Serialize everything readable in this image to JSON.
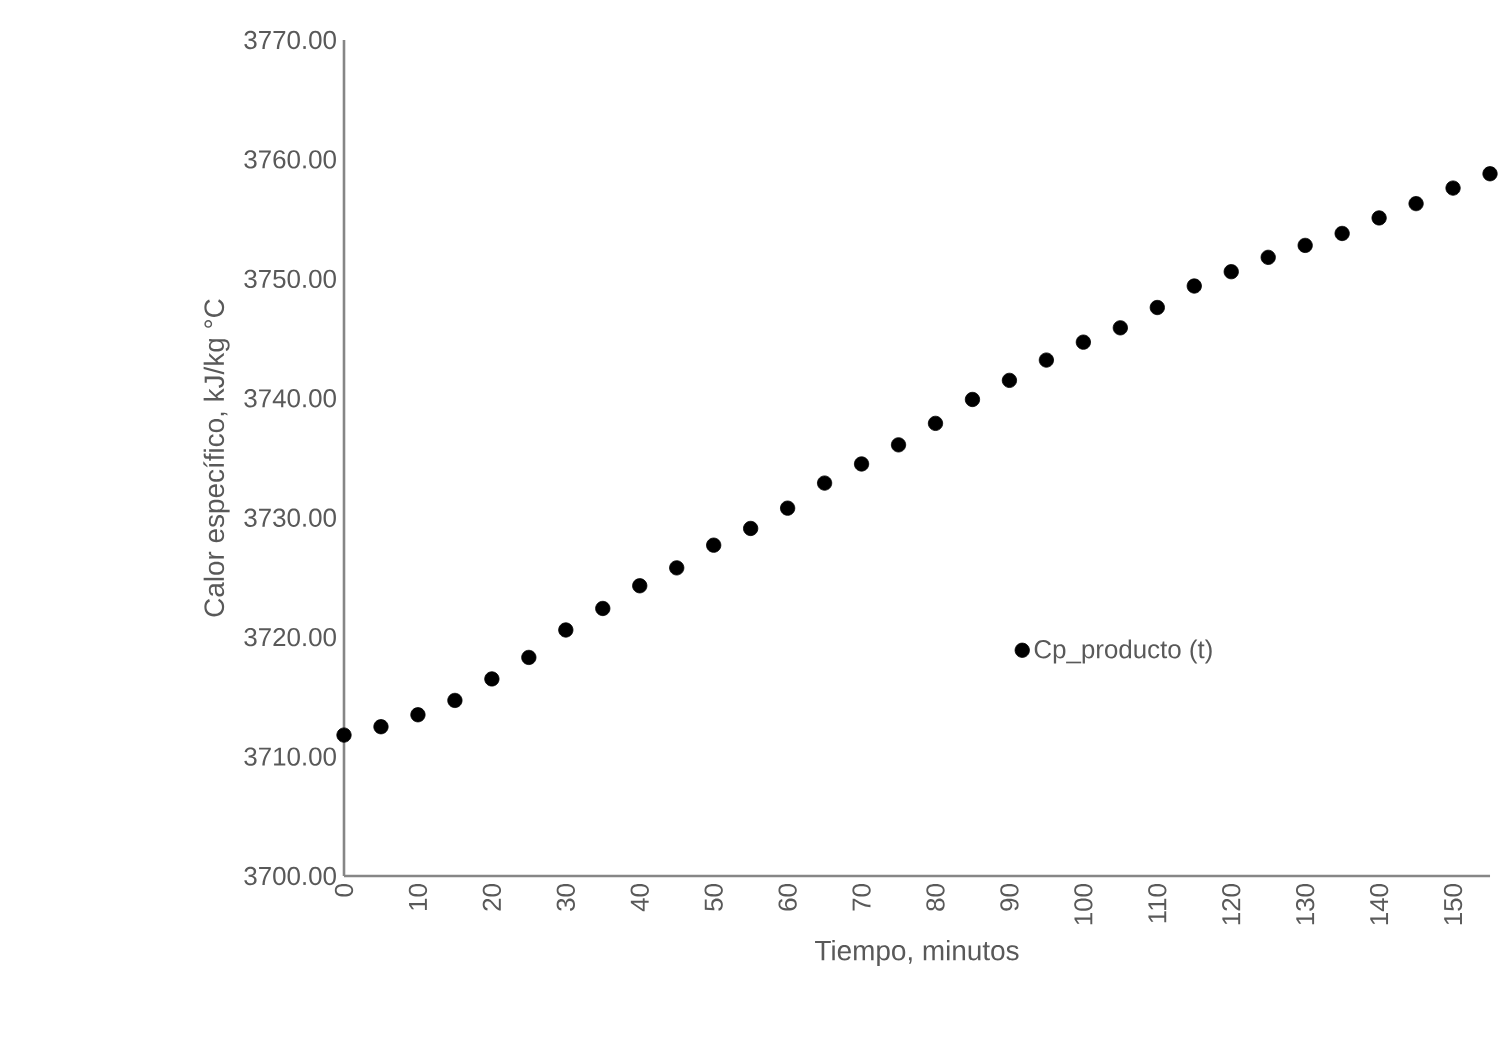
{
  "chart_data": {
    "type": "scatter",
    "xlabel": "Tiempo, minutos",
    "ylabel": "Calor específico, kJ/kg °C",
    "x": [
      0,
      5,
      10,
      15,
      20,
      25,
      30,
      35,
      40,
      45,
      50,
      55,
      60,
      65,
      70,
      75,
      80,
      85,
      90,
      95,
      100,
      105,
      110,
      115,
      120,
      125,
      130,
      135,
      140,
      145,
      150,
      155
    ],
    "series": [
      {
        "name": "Cp_producto (t)",
        "color": "#000000",
        "values": [
          3711.8,
          3712.5,
          3713.5,
          3714.7,
          3716.5,
          3718.3,
          3720.6,
          3722.4,
          3724.3,
          3725.8,
          3727.7,
          3729.1,
          3730.8,
          3732.9,
          3734.5,
          3736.1,
          3737.9,
          3739.9,
          3741.5,
          3743.2,
          3744.7,
          3745.9,
          3747.6,
          3749.4,
          3750.6,
          3751.8,
          3752.8,
          3753.8,
          3755.1,
          3756.3,
          3757.6,
          3758.8
        ]
      }
    ],
    "xlim": [
      0,
      155
    ],
    "xticks": [
      0,
      10,
      20,
      30,
      40,
      50,
      60,
      70,
      80,
      90,
      100,
      110,
      120,
      130,
      140,
      150
    ],
    "ylim": [
      3700,
      3770
    ],
    "yticks": [
      {
        "value": 3700,
        "label": "3700.00"
      },
      {
        "value": 3710,
        "label": "3710.00"
      },
      {
        "value": 3720,
        "label": "3720.00"
      },
      {
        "value": 3730,
        "label": "3730.00"
      },
      {
        "value": 3740,
        "label": "3740.00"
      },
      {
        "value": 3750,
        "label": "3750.00"
      },
      {
        "value": 3760,
        "label": "3760.00"
      },
      {
        "value": 3770,
        "label": "3770.00"
      }
    ],
    "grid": false,
    "legend": "right"
  }
}
